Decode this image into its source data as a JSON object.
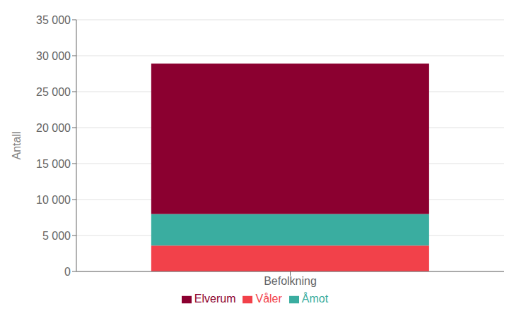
{
  "chart_data": {
    "type": "bar",
    "stacked": true,
    "categories": [
      "Befolkning"
    ],
    "series": [
      {
        "name": "Våler",
        "color": "#f2414a",
        "values": [
          3600
        ]
      },
      {
        "name": "Åmot",
        "color": "#3aada0",
        "values": [
          4400
        ]
      },
      {
        "name": "Elverum",
        "color": "#8b0030",
        "values": [
          20900
        ]
      }
    ],
    "ylabel": "Antall",
    "ylim": [
      0,
      35000
    ],
    "yticks": [
      0,
      {
        "value": 5000,
        "label": "5 000"
      },
      {
        "value": 10000,
        "label": "10 000"
      },
      {
        "value": 15000,
        "label": "15 000"
      },
      {
        "value": 20000,
        "label": "20 000"
      },
      {
        "value": 25000,
        "label": "25 000"
      },
      {
        "value": 30000,
        "label": "30 000"
      },
      {
        "value": 35000,
        "label": "35 000"
      }
    ],
    "grid": true,
    "legend": "bottom"
  }
}
